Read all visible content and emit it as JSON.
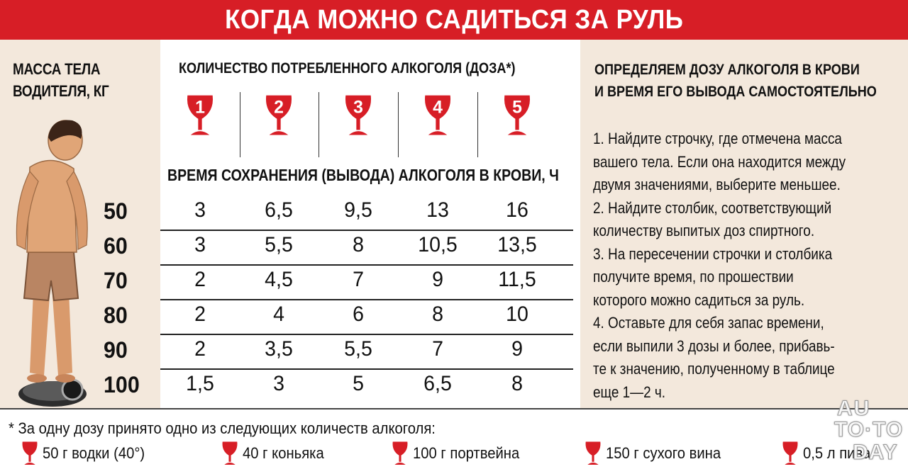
{
  "title": "КОГДА МОЖНО САДИТЬСЯ ЗА РУЛЬ",
  "mass_header": [
    "МАССА ТЕЛА",
    "ВОДИТЕЛЯ, КГ"
  ],
  "dose_header": "КОЛИЧЕСТВО ПОТРЕБЛЕННОГО АЛКОГОЛЯ (ДОЗА*)",
  "doses": [
    "1",
    "2",
    "3",
    "4",
    "5"
  ],
  "time_header": "ВРЕМЯ СОХРАНЕНИЯ (ВЫВОДА) АЛКОГОЛЯ В КРОВИ, Ч",
  "table": {
    "rows": [
      {
        "mass": "50",
        "values": [
          "3",
          "6,5",
          "9,5",
          "13",
          "16"
        ]
      },
      {
        "mass": "60",
        "values": [
          "3",
          "5,5",
          "8",
          "10,5",
          "13,5"
        ]
      },
      {
        "mass": "70",
        "values": [
          "2",
          "4,5",
          "7",
          "9",
          "11,5"
        ]
      },
      {
        "mass": "80",
        "values": [
          "2",
          "4",
          "6",
          "8",
          "10"
        ]
      },
      {
        "mass": "90",
        "values": [
          "2",
          "3,5",
          "5,5",
          "7",
          "9"
        ]
      },
      {
        "mass": "100",
        "values": [
          "1,5",
          "3",
          "5",
          "6,5",
          "8"
        ]
      }
    ]
  },
  "right_header": [
    "ОПРЕДЕЛЯЕМ ДОЗУ АЛКОГОЛЯ В КРОВИ",
    "И ВРЕМЯ ЕГО ВЫВОДА САМОСТОЯТЕЛЬНО"
  ],
  "instructions": [
    "1. Найдите строчку, где отмечена масса",
    "вашего тела. Если она находится между",
    "двумя значениями, выберите меньшее.",
    "2. Найдите столбик, соответствующий",
    "количеству выпитых доз спиртного.",
    "3. На пересечении строчки и столбика",
    "получите время, по прошествии",
    "которого можно садиться за руль.",
    "4. Оставьте для себя запас времени,",
    "если выпили 3 дозы и более, прибавь-",
    "те к значению, полученному в таблице",
    "еще 1—2 ч."
  ],
  "footnote": "* За одну дозу принято одно из следующих количеств алкоголя:",
  "servings": [
    "50 г водки (40°)",
    "40 г коньяка",
    "100 г портвейна",
    "150 г сухого вина",
    "0,5 л пива"
  ],
  "watermark": [
    "AU",
    "TO·TO",
    "DAY"
  ],
  "colors": {
    "accent": "#d71e26",
    "panel": "#f3e8dc"
  }
}
